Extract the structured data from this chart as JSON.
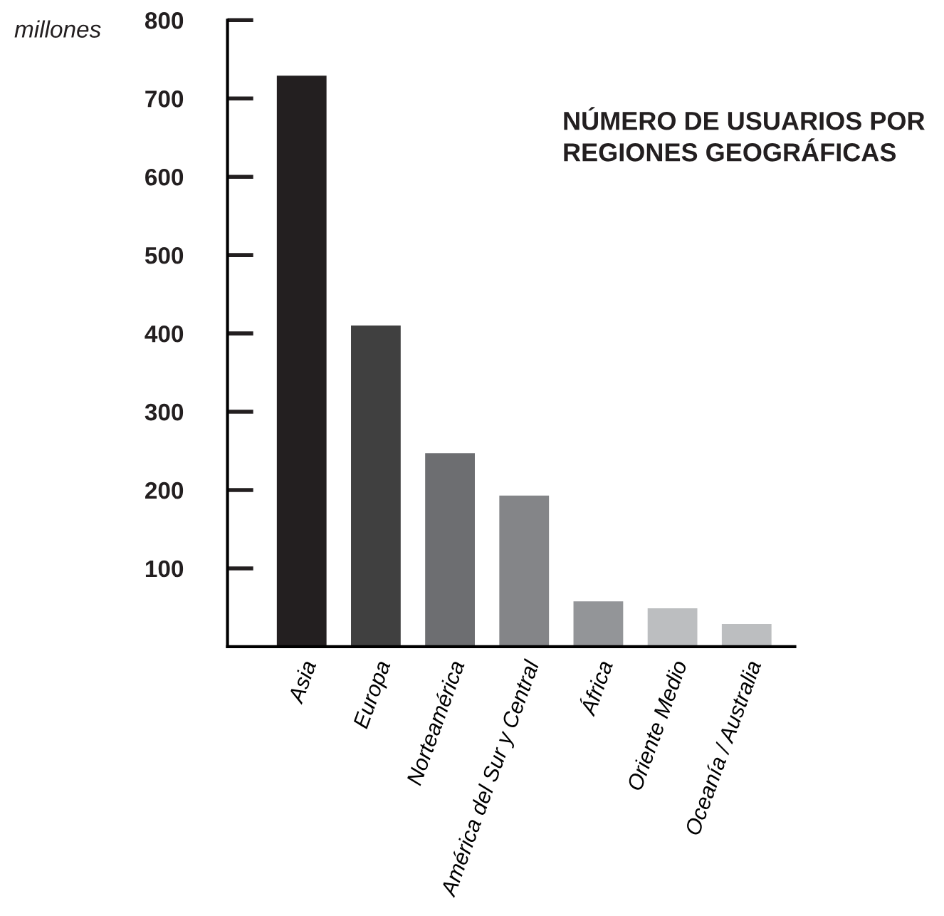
{
  "chart_data": {
    "type": "bar",
    "title": "NÚMERO DE USUARIOS POR\nREGIONES GEOGRÁFICAS",
    "ylabel": "millones",
    "categories": [
      "Asia",
      "Europa",
      "Norteamérica",
      "América del Sur y Central",
      "África",
      "Oriente Medio",
      "Oceanía / Australia"
    ],
    "values": [
      729,
      410,
      247,
      193,
      58,
      49,
      29
    ],
    "colors": [
      "#231f20",
      "#404040",
      "#6d6e71",
      "#848588",
      "#939598",
      "#bcbec0",
      "#bcbec0"
    ],
    "ylim": [
      0,
      800
    ],
    "yticks": [
      100,
      200,
      300,
      400,
      500,
      600,
      700,
      800
    ],
    "grid": false,
    "legend": false
  }
}
